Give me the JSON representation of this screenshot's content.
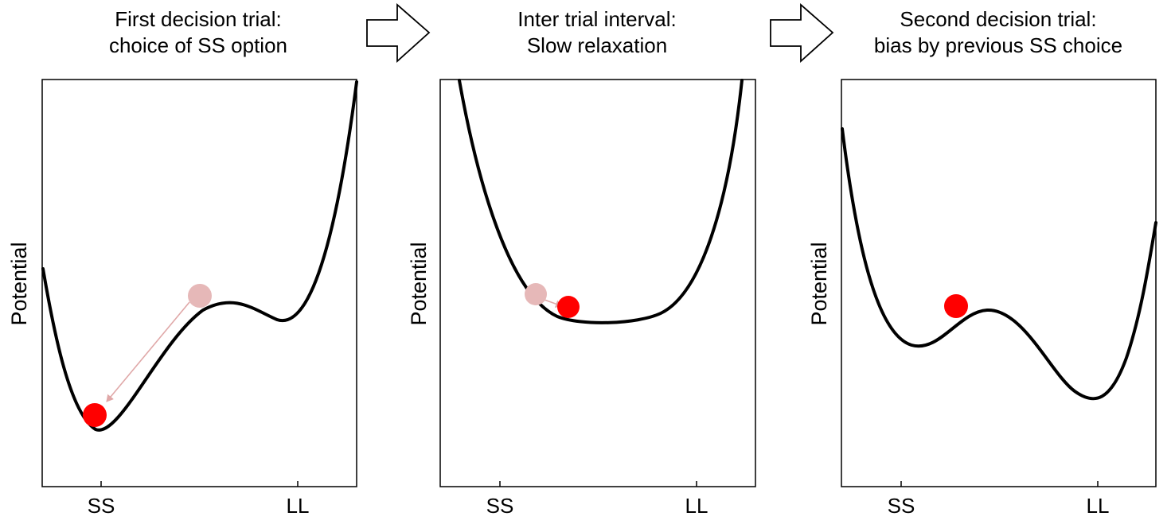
{
  "colors": {
    "ball_current": "#ff0000",
    "ball_previous": "#e6b8b8",
    "trail": "#e0a8a8",
    "curve": "#000000"
  },
  "panels": [
    {
      "title_line1": "First decision trial:",
      "title_line2": "choice of SS option",
      "ylabel": "Potential",
      "tick_left": "SS",
      "tick_right": "LL"
    },
    {
      "title_line1": "Inter trial interval:",
      "title_line2": "Slow relaxation",
      "ylabel": "Potential",
      "tick_left": "SS",
      "tick_right": "LL"
    },
    {
      "title_line1": "Second decision trial:",
      "title_line2": "bias by previous SS choice",
      "ylabel": "Potential",
      "tick_left": "SS",
      "tick_right": "LL"
    }
  ],
  "flow_arrow_icon": "right-arrow-outline-icon"
}
